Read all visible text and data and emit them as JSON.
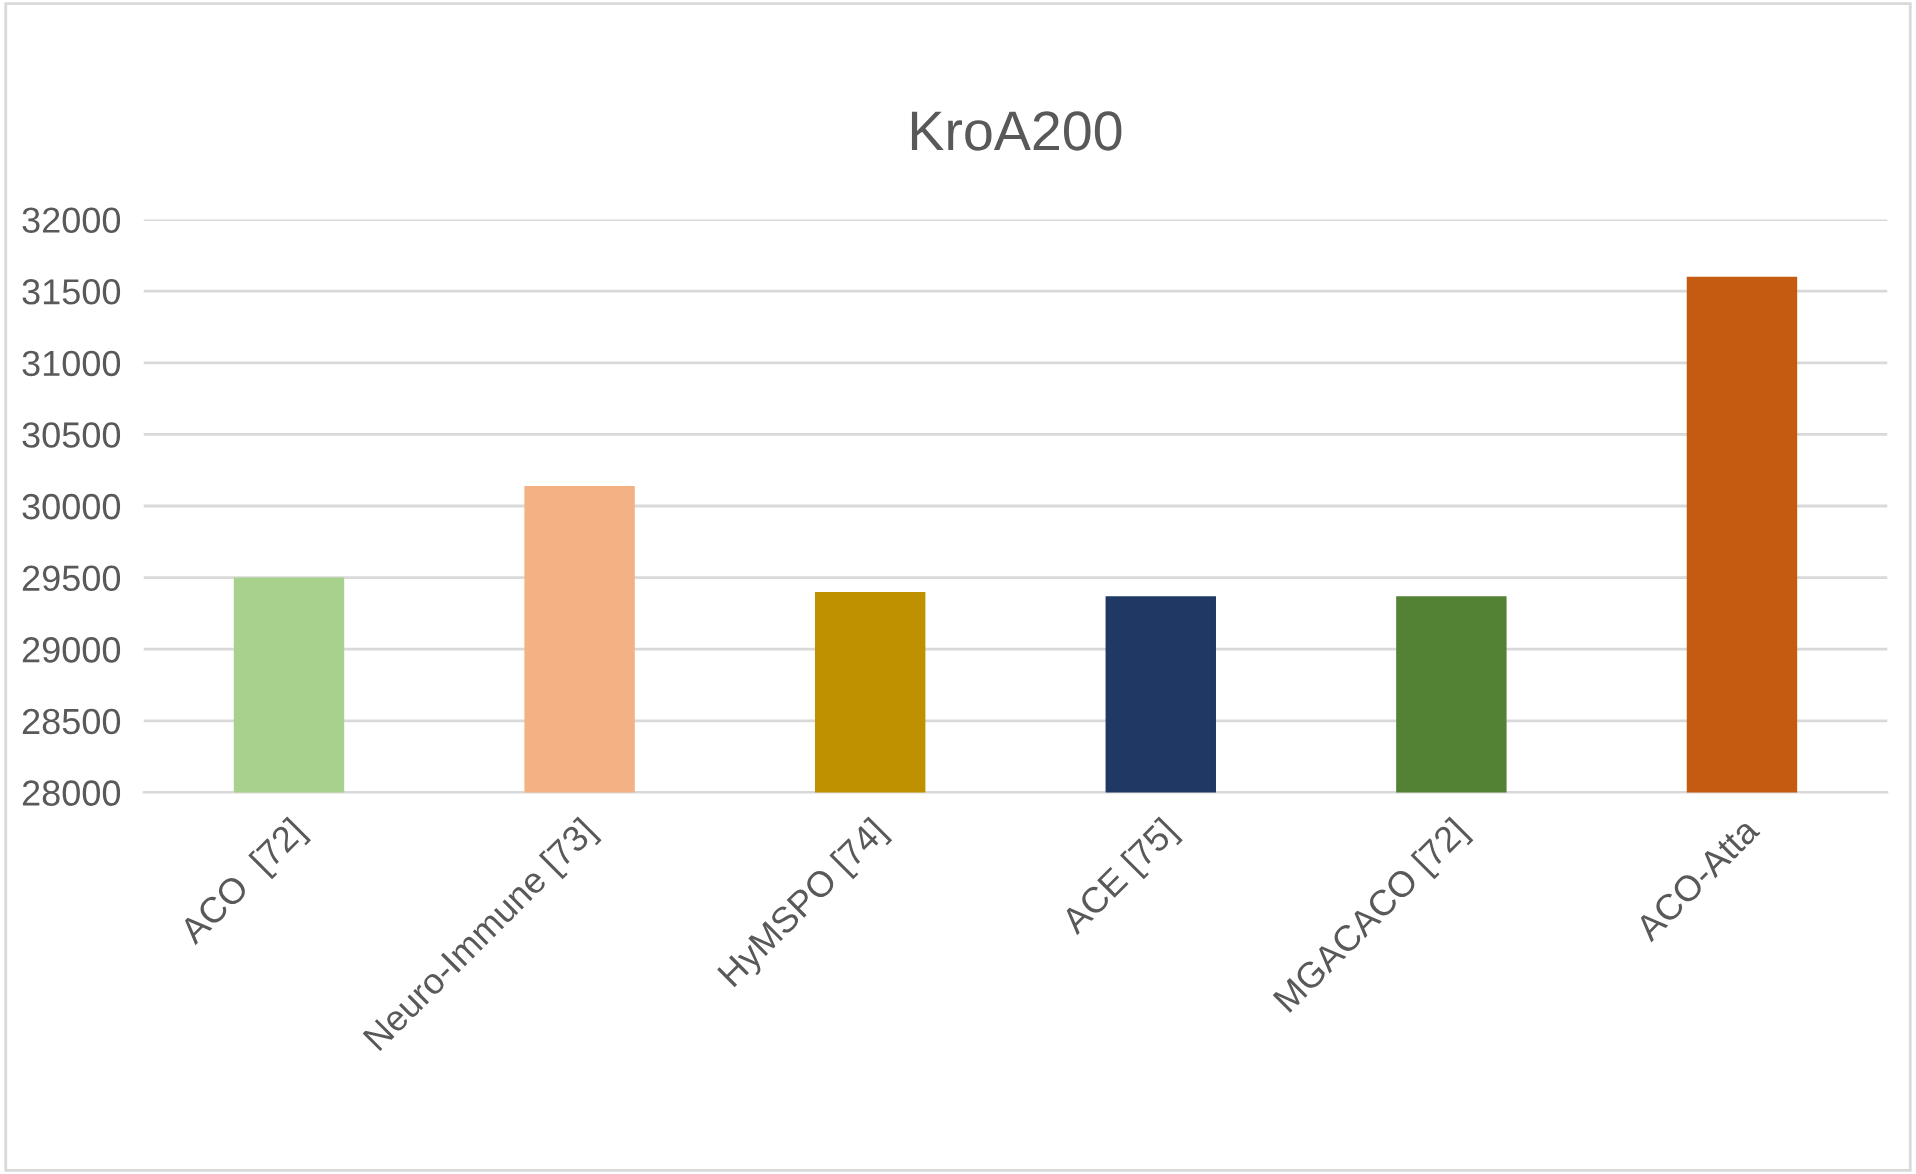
{
  "chart_data": {
    "type": "bar",
    "title": "KroA200",
    "categories": [
      "ACO  [72]",
      "Neuro-Immune [73]",
      "HyMSPO [74]",
      "ACE [75]",
      "MGACACO [72]",
      "ACO-Atta"
    ],
    "values": [
      29500,
      30140,
      29400,
      29370,
      29370,
      31600
    ],
    "colors": [
      "#a9d18e",
      "#f4b183",
      "#bf9000",
      "#203864",
      "#548235",
      "#c55a11"
    ],
    "ylim": [
      28000,
      32000
    ],
    "yticks": [
      28000,
      28500,
      29000,
      29500,
      30000,
      30500,
      31000,
      31500,
      32000
    ],
    "grid": "y",
    "legend": false
  }
}
